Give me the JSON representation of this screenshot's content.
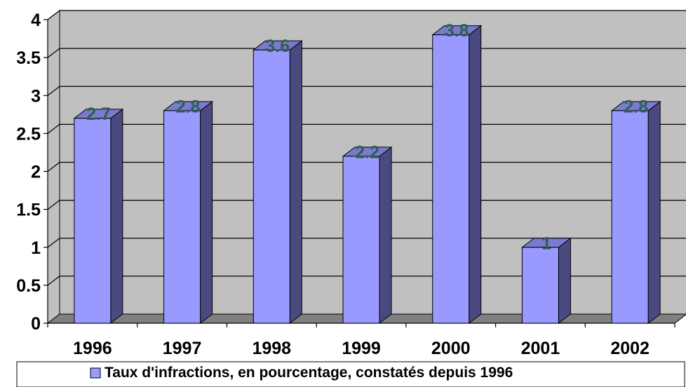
{
  "chart_data": {
    "type": "bar",
    "categories": [
      "1996",
      "1997",
      "1998",
      "1999",
      "2000",
      "2001",
      "2002"
    ],
    "series": [
      {
        "name": "Taux d'infractions, en pourcentage, constatés depuis 1996",
        "values": [
          2.7,
          2.8,
          3.6,
          2.2,
          3.8,
          1,
          2.8
        ]
      }
    ],
    "ylim": [
      0,
      4
    ],
    "yticks": [
      "0",
      "0.5",
      "1",
      "1.5",
      "2",
      "2.5",
      "3",
      "3.5",
      "4"
    ],
    "grid": true,
    "legend_position": "bottom",
    "colors": {
      "bar_front": "#9999ff",
      "bar_side": "#4a4a80",
      "bar_top": "#7a7ad0",
      "wall": "#c0c0c0",
      "floor": "#808080",
      "gridline": "#000000",
      "data_label": "#2f5f4f"
    }
  }
}
